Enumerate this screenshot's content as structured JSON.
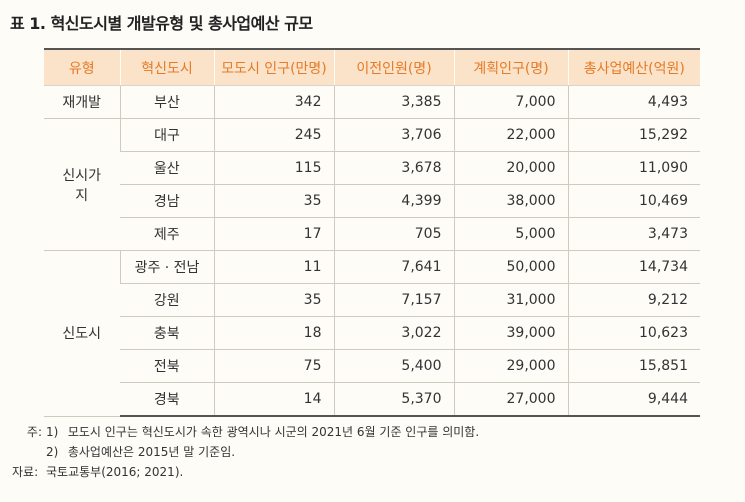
{
  "title": "표 1.  혁신도시별 개발유형 및 총사업예산 규모",
  "headers": [
    "유형",
    "혁신도시",
    "모도시 인구(만명)",
    "이전인원(명)",
    "계획인구(명)",
    "총사업예산(억원)"
  ],
  "groups": [
    {
      "type": "재개발",
      "rows": [
        {
          "city": "부산",
          "pop": "342",
          "transfer": "3,385",
          "plan": "7,000",
          "budget": "4,493"
        }
      ]
    },
    {
      "type": "신시가지",
      "rows": [
        {
          "city": "대구",
          "pop": "245",
          "transfer": "3,706",
          "plan": "22,000",
          "budget": "15,292"
        },
        {
          "city": "울산",
          "pop": "115",
          "transfer": "3,678",
          "plan": "20,000",
          "budget": "11,090"
        },
        {
          "city": "경남",
          "pop": "35",
          "transfer": "4,399",
          "plan": "38,000",
          "budget": "10,469"
        },
        {
          "city": "제주",
          "pop": "17",
          "transfer": "705",
          "plan": "5,000",
          "budget": "3,473"
        }
      ]
    },
    {
      "type": "신도시",
      "rows": [
        {
          "city": "광주 · 전남",
          "pop": "11",
          "transfer": "7,641",
          "plan": "50,000",
          "budget": "14,734"
        },
        {
          "city": "강원",
          "pop": "35",
          "transfer": "7,157",
          "plan": "31,000",
          "budget": "9,212"
        },
        {
          "city": "충북",
          "pop": "18",
          "transfer": "3,022",
          "plan": "39,000",
          "budget": "10,623"
        },
        {
          "city": "전북",
          "pop": "75",
          "transfer": "5,400",
          "plan": "29,000",
          "budget": "15,851"
        },
        {
          "city": "경북",
          "pop": "14",
          "transfer": "5,370",
          "plan": "27,000",
          "budget": "9,444"
        }
      ]
    }
  ],
  "notes": {
    "prefix": "주:",
    "items": [
      {
        "num": "1)",
        "text": "모도시 인구는 혁신도시가 속한 광역시나 시군의 2021년 6월 기준 인구를 의미함."
      },
      {
        "num": "2)",
        "text": "총사업예산은 2015년 말 기준임."
      }
    ],
    "source_prefix": "자료:",
    "source_text": "국토교통부(2016; 2021)."
  }
}
